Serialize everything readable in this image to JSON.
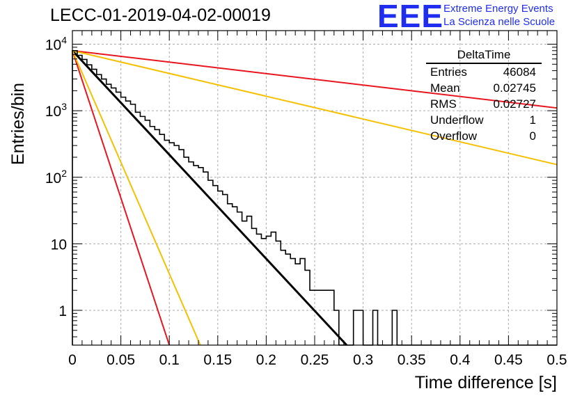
{
  "header": {
    "title": "LECC-01-2019-04-02-00019",
    "logo_letters": "EEE",
    "logo_line1": "Extreme Energy Events",
    "logo_line2": "La Scienza nelle Scuole"
  },
  "stats_box": {
    "title": "DeltaTime",
    "rows": [
      {
        "label": "Entries",
        "value": "46084"
      },
      {
        "label": "Mean",
        "value": "0.02745"
      },
      {
        "label": "RMS",
        "value": "0.02727"
      },
      {
        "label": "Underflow",
        "value": "1"
      },
      {
        "label": "Overflow",
        "value": "0"
      }
    ]
  },
  "chart_data": {
    "type": "line",
    "title": "LECC-01-2019-04-02-00019",
    "xlabel": "Time difference [s]",
    "ylabel": "Entries/bin",
    "xlim": [
      0,
      0.5
    ],
    "ylim": [
      0.3,
      16000
    ],
    "yscale": "log",
    "grid": true,
    "x_ticks": [
      0,
      0.05,
      0.1,
      0.15,
      0.2,
      0.25,
      0.3,
      0.35,
      0.4,
      0.45,
      0.5
    ],
    "x_tick_labels": [
      "0",
      "0.05",
      "0.1",
      "0.15",
      "0.2",
      "0.25",
      "0.3",
      "0.35",
      "0.4",
      "0.45",
      "0.5"
    ],
    "y_ticks": [
      1,
      10,
      100,
      1000,
      10000
    ],
    "y_tick_labels": [
      "1",
      "10",
      "10^2",
      "10^3",
      "10^4"
    ],
    "histogram": {
      "name": "DeltaTime",
      "color": "#000000",
      "bin_width": 0.005,
      "x_start": 0,
      "values": [
        8000,
        6800,
        5900,
        4900,
        4200,
        3500,
        3000,
        2500,
        2200,
        1900,
        1600,
        1400,
        1250,
        950,
        820,
        720,
        580,
        520,
        440,
        360,
        330,
        300,
        260,
        200,
        170,
        150,
        140,
        120,
        90,
        75,
        62,
        55,
        40,
        36,
        30,
        22,
        26,
        17,
        14,
        12,
        13,
        15,
        11,
        8,
        7,
        6,
        5,
        6,
        4,
        2,
        2,
        2,
        2,
        2,
        1,
        0,
        0,
        0,
        1,
        1,
        0,
        0,
        1,
        0,
        0,
        0,
        1,
        0,
        0,
        0,
        0,
        0,
        0,
        0,
        0,
        0,
        0,
        0,
        0,
        0,
        0,
        0,
        0,
        0,
        0,
        0,
        0,
        0,
        0,
        0,
        0,
        0,
        0,
        0,
        0,
        0,
        0,
        0,
        0,
        0
      ]
    },
    "series": [
      {
        "color": "#000000",
        "kind": "exponential",
        "points": [
          [
            0,
            8000
          ],
          [
            0.283,
            0.3
          ]
        ]
      },
      {
        "color": "#e8141e",
        "kind": "exponential",
        "points": [
          [
            0,
            8000
          ],
          [
            0.1,
            0.3
          ]
        ]
      },
      {
        "color": "#f5c000",
        "kind": "exponential",
        "points": [
          [
            0,
            8000
          ],
          [
            0.132,
            0.3
          ]
        ]
      },
      {
        "color": "#e8141e",
        "kind": "exponential",
        "points": [
          [
            0,
            8000
          ],
          [
            0.5,
            1100
          ]
        ]
      },
      {
        "color": "#f5c000",
        "kind": "exponential",
        "points": [
          [
            0,
            8000
          ],
          [
            0.5,
            155
          ]
        ]
      }
    ]
  }
}
